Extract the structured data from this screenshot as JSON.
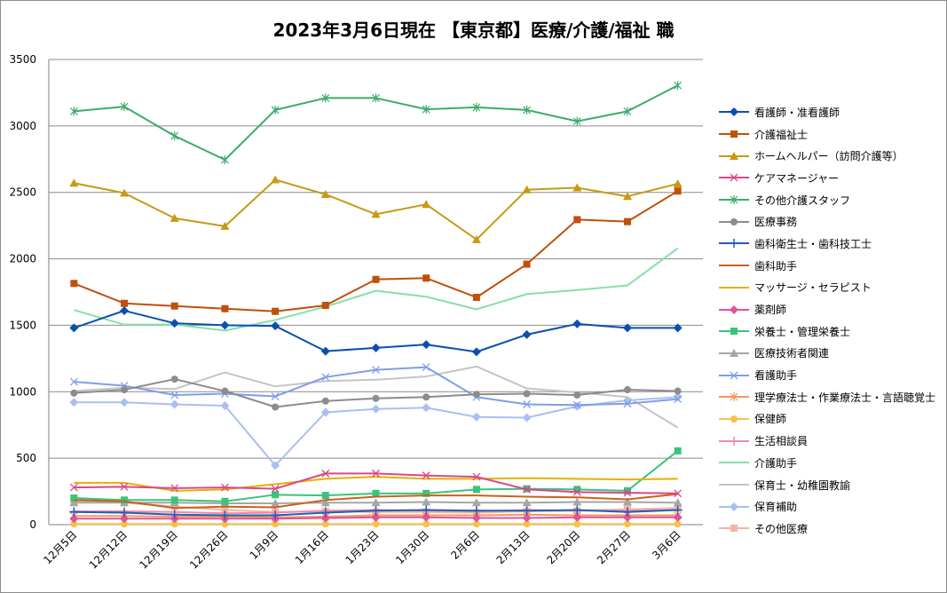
{
  "chart_data": {
    "type": "line",
    "title": "2023年3月6日現在 【東京都】医療/介護/福祉 職",
    "xlabel": "",
    "ylabel": "",
    "ylim": [
      0,
      3500
    ],
    "yticks": [
      0,
      500,
      1000,
      1500,
      2000,
      2500,
      3000,
      3500
    ],
    "categories": [
      "12月5日",
      "12月12日",
      "12月19日",
      "12月26日",
      "1月9日",
      "1月16日",
      "1月23日",
      "1月30日",
      "2月6日",
      "2月13日",
      "2月20日",
      "2月27日",
      "3月6日"
    ],
    "grid": true,
    "legend": "right",
    "series": [
      {
        "name": "看護師・准看護師",
        "color": "#0c4fae",
        "marker": "diamond",
        "values": [
          1480,
          1610,
          1515,
          1500,
          1495,
          1305,
          1330,
          1355,
          1300,
          1430,
          1510,
          1480,
          1480
        ]
      },
      {
        "name": "介護福祉士",
        "color": "#c0500a",
        "marker": "square",
        "values": [
          1815,
          1665,
          1645,
          1625,
          1605,
          1650,
          1845,
          1855,
          1710,
          1960,
          2295,
          2280,
          2510
        ]
      },
      {
        "name": "ホームヘルパー（訪問介護等）",
        "color": "#c79a13",
        "marker": "triangle",
        "values": [
          2570,
          2495,
          2305,
          2245,
          2595,
          2485,
          2335,
          2410,
          2145,
          2520,
          2535,
          2470,
          2565
        ]
      },
      {
        "name": "ケアマネージャー",
        "color": "#d9488a",
        "marker": "x",
        "values": [
          280,
          285,
          275,
          280,
          270,
          385,
          385,
          370,
          360,
          265,
          245,
          240,
          235
        ]
      },
      {
        "name": "その他介護スタッフ",
        "color": "#3cac6a",
        "marker": "star",
        "values": [
          3110,
          3145,
          2925,
          2745,
          3120,
          3210,
          3210,
          3125,
          3140,
          3120,
          3035,
          3110,
          3305
        ]
      },
      {
        "name": "医療事務",
        "color": "#8c8c8c",
        "marker": "circle",
        "values": [
          990,
          1015,
          1095,
          1005,
          885,
          930,
          950,
          960,
          980,
          985,
          975,
          1015,
          1005
        ]
      },
      {
        "name": "歯科衛生士・歯科技工士",
        "color": "#1f5fb4",
        "marker": "plus",
        "values": [
          95,
          90,
          75,
          70,
          70,
          90,
          105,
          110,
          105,
          105,
          110,
          95,
          110
        ]
      },
      {
        "name": "歯科助手",
        "color": "#c96218",
        "marker": "none",
        "values": [
          185,
          175,
          125,
          135,
          130,
          185,
          210,
          220,
          220,
          210,
          205,
          190,
          230
        ]
      },
      {
        "name": "マッサージ・セラピスト",
        "color": "#e6b000",
        "marker": "none",
        "values": [
          315,
          315,
          255,
          265,
          305,
          345,
          360,
          345,
          345,
          350,
          345,
          340,
          345
        ]
      },
      {
        "name": "薬剤師",
        "color": "#e0529c",
        "marker": "diamond",
        "values": [
          45,
          45,
          45,
          45,
          45,
          50,
          55,
          55,
          50,
          50,
          55,
          55,
          55
        ]
      },
      {
        "name": "栄養士・管理栄養士",
        "color": "#3ac37a",
        "marker": "square",
        "values": [
          200,
          185,
          185,
          175,
          225,
          220,
          235,
          235,
          265,
          270,
          265,
          255,
          555
        ]
      },
      {
        "name": "医療技術者関連",
        "color": "#a6a6a6",
        "marker": "triangle",
        "values": [
          165,
          165,
          165,
          160,
          160,
          165,
          165,
          170,
          165,
          165,
          170,
          170,
          165
        ]
      },
      {
        "name": "看護助手",
        "color": "#7f9ee8",
        "marker": "x",
        "values": [
          1075,
          1045,
          975,
          985,
          965,
          1110,
          1165,
          1185,
          960,
          905,
          900,
          910,
          945
        ]
      },
      {
        "name": "理学療法士・作業療法士・言語聴覚士",
        "color": "#f5985a",
        "marker": "star",
        "values": [
          65,
          65,
          60,
          60,
          55,
          60,
          70,
          70,
          70,
          75,
          70,
          70,
          70
        ]
      },
      {
        "name": "保健師",
        "color": "#f6c24a",
        "marker": "circle",
        "values": [
          5,
          5,
          5,
          5,
          5,
          5,
          5,
          5,
          5,
          5,
          5,
          5,
          5
        ]
      },
      {
        "name": "生活相談員",
        "color": "#ee88b0",
        "marker": "plus",
        "values": [
          100,
          100,
          95,
          85,
          90,
          105,
          110,
          105,
          100,
          110,
          105,
          105,
          110
        ]
      },
      {
        "name": "介護助手",
        "color": "#86e0a8",
        "marker": "none",
        "values": [
          1615,
          1505,
          1505,
          1460,
          1540,
          1640,
          1760,
          1715,
          1620,
          1735,
          1765,
          1800,
          2080
        ]
      },
      {
        "name": "保育士・幼稚園教諭",
        "color": "#c4c4c4",
        "marker": "none",
        "values": [
          1005,
          1030,
          1020,
          1145,
          1040,
          1080,
          1090,
          1115,
          1190,
          1025,
          995,
          960,
          730
        ]
      },
      {
        "name": "保育補助",
        "color": "#a9bff2",
        "marker": "diamond",
        "values": [
          920,
          920,
          905,
          895,
          445,
          845,
          870,
          880,
          810,
          805,
          890,
          935,
          960
        ]
      },
      {
        "name": "その他医療",
        "color": "#f7b3a4",
        "marker": "square",
        "values": [
          175,
          165,
          135,
          110,
          95,
          100,
          95,
          95,
          90,
          100,
          105,
          115,
          125
        ]
      }
    ]
  }
}
